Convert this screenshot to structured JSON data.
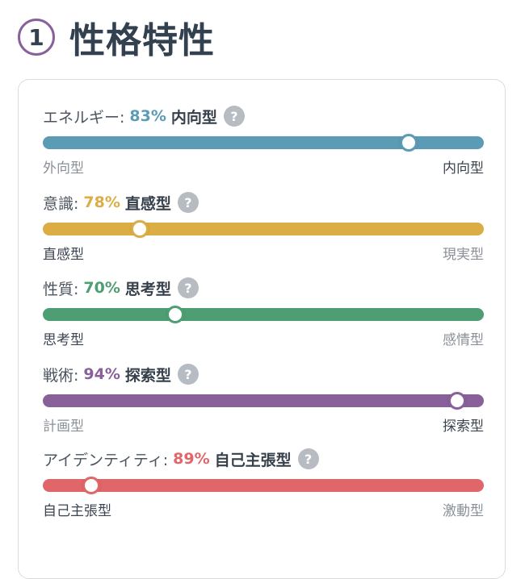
{
  "header": {
    "step": "1",
    "title": "性格特性"
  },
  "colors": {
    "badge": "#88619a",
    "help": "#b7bbc2"
  },
  "traits": [
    {
      "label": "エネルギー:",
      "percent": "83%",
      "type": "内向型",
      "left": "外向型",
      "right": "内向型",
      "active": "right",
      "level": 0.83,
      "color": "#5b9bb5",
      "help_icon": "question-mark"
    },
    {
      "label": "意識:",
      "percent": "78%",
      "type": "直感型",
      "left": "直感型",
      "right": "現実型",
      "active": "left",
      "level": 0.78,
      "color": "#dcad45",
      "help_icon": "question-mark"
    },
    {
      "label": "性質:",
      "percent": "70%",
      "type": "思考型",
      "left": "思考型",
      "right": "感情型",
      "active": "left",
      "level": 0.7,
      "color": "#4e9e74",
      "help_icon": "question-mark"
    },
    {
      "label": "戦術:",
      "percent": "94%",
      "type": "探索型",
      "left": "計画型",
      "right": "探索型",
      "active": "right",
      "level": 0.94,
      "color": "#88619a",
      "help_icon": "question-mark"
    },
    {
      "label": "アイデンティティ:",
      "percent": "89%",
      "type": "自己主張型",
      "left": "自己主張型",
      "right": "激動型",
      "active": "left",
      "level": 0.89,
      "color": "#e06669",
      "help_icon": "question-mark"
    }
  ]
}
